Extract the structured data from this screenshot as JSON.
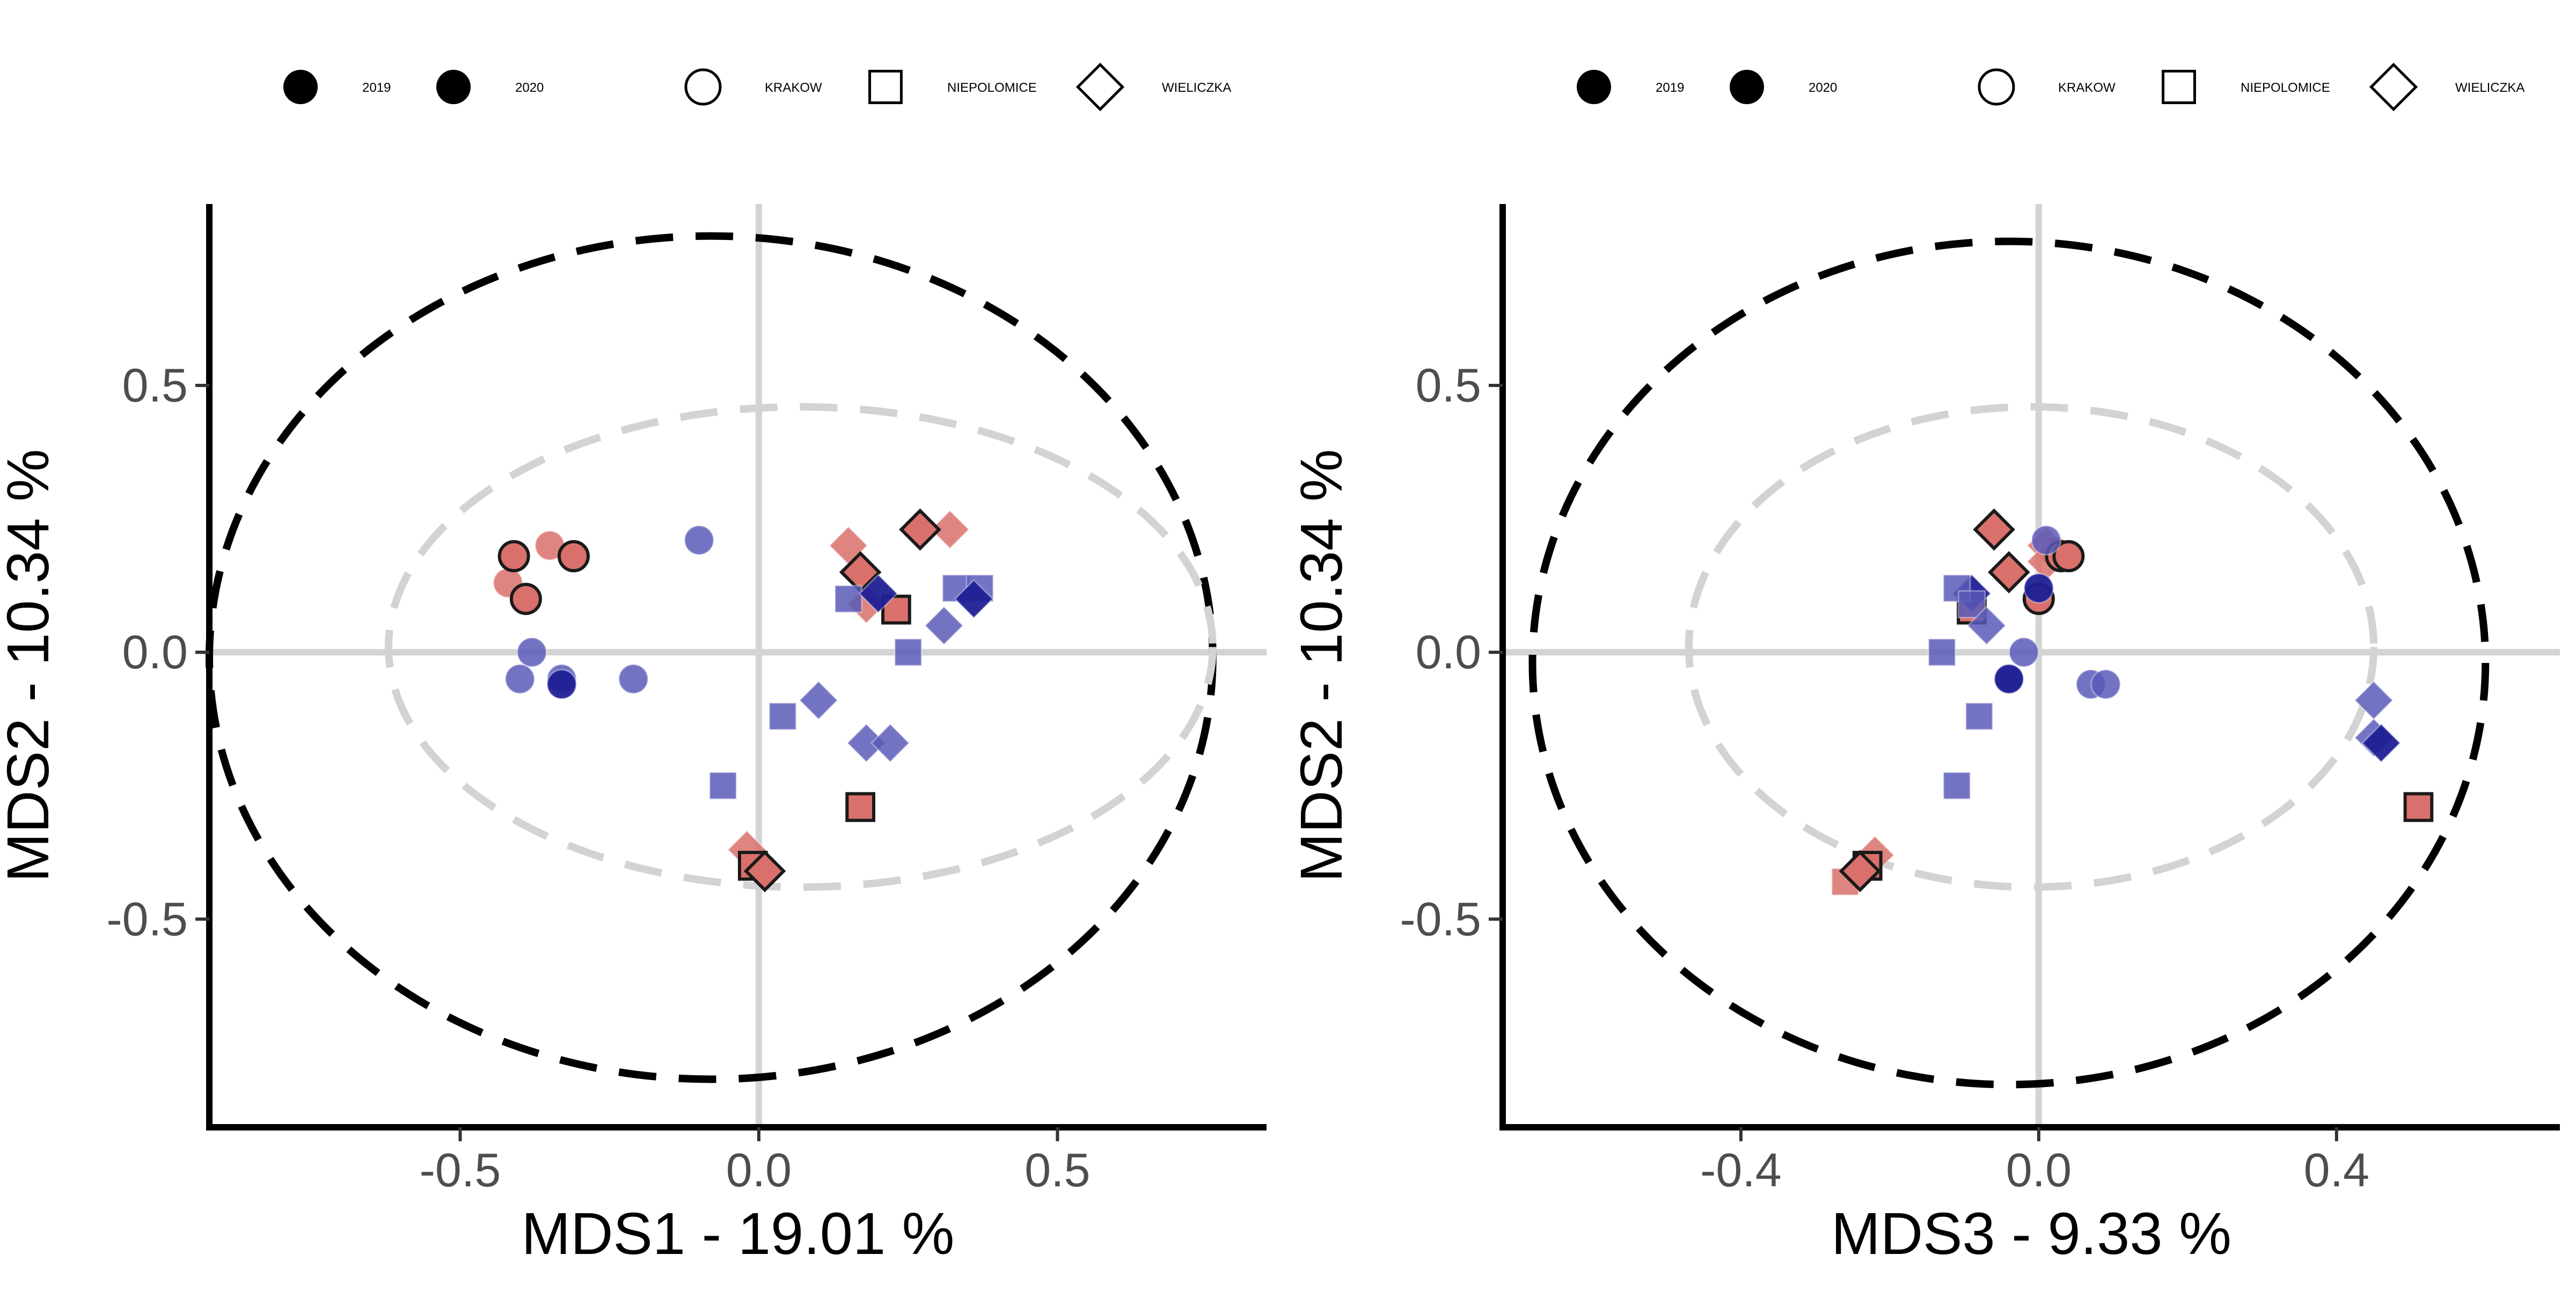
{
  "legend": {
    "year_entries": [
      {
        "label": "2019",
        "symbol": "circle-filled"
      },
      {
        "label": "2020",
        "symbol": "circle-filled"
      }
    ],
    "site_entries": [
      {
        "label": "KRAKOW",
        "symbol": "circle-open"
      },
      {
        "label": "NIEPOLOMICE",
        "symbol": "square-open"
      },
      {
        "label": "WIELICZKA",
        "symbol": "diamond-open"
      }
    ]
  },
  "colors": {
    "2019": "#d9706b",
    "2020": "#5a5ab8",
    "2020_dark": "#1f1f96",
    "ellipse_outer": "#000000",
    "ellipse_inner": "#d3d3d3",
    "zero_line": "#d3d3d3"
  },
  "chart_data": [
    {
      "type": "scatter",
      "xlabel": "MDS1 - 19.01 %",
      "ylabel": "MDS2 - 10.34 %",
      "xlim": [
        -0.92,
        0.85
      ],
      "ylim": [
        -0.89,
        0.84
      ],
      "xticks": [
        -0.5,
        0.0,
        0.5
      ],
      "xtick_labels": [
        "-0.5",
        "0.0",
        "0.5"
      ],
      "yticks": [
        -0.5,
        0.0,
        0.5
      ],
      "ytick_labels": [
        "-0.5",
        "0.0",
        "0.5"
      ],
      "ellipses": [
        {
          "style": "outer-dashed-black",
          "cx": -0.08,
          "cy": -0.01,
          "rx": 0.84,
          "ry": 0.79
        },
        {
          "style": "inner-dashed-grey",
          "cx": 0.07,
          "cy": 0.01,
          "rx": 0.69,
          "ry": 0.45
        }
      ],
      "series": [
        {
          "name": "2019",
          "points": [
            {
              "x": -0.42,
              "y": 0.13,
              "shape": "circle",
              "outline": false
            },
            {
              "x": -0.35,
              "y": 0.2,
              "shape": "circle",
              "outline": false
            },
            {
              "x": -0.41,
              "y": 0.18,
              "shape": "circle",
              "outline": true
            },
            {
              "x": -0.39,
              "y": 0.1,
              "shape": "circle",
              "outline": true
            },
            {
              "x": -0.31,
              "y": 0.18,
              "shape": "circle",
              "outline": true
            },
            {
              "x": 0.15,
              "y": 0.2,
              "shape": "diamond",
              "outline": false
            },
            {
              "x": 0.18,
              "y": 0.09,
              "shape": "diamond",
              "outline": false
            },
            {
              "x": 0.32,
              "y": 0.23,
              "shape": "diamond",
              "outline": false
            },
            {
              "x": 0.17,
              "y": 0.15,
              "shape": "diamond",
              "outline": true
            },
            {
              "x": 0.27,
              "y": 0.23,
              "shape": "diamond",
              "outline": true
            },
            {
              "x": 0.23,
              "y": 0.08,
              "shape": "square",
              "outline": true
            },
            {
              "x": 0.17,
              "y": -0.29,
              "shape": "square",
              "outline": true
            },
            {
              "x": -0.02,
              "y": -0.37,
              "shape": "diamond",
              "outline": false
            },
            {
              "x": -0.01,
              "y": -0.4,
              "shape": "square",
              "outline": true
            },
            {
              "x": 0.01,
              "y": -0.41,
              "shape": "diamond",
              "outline": true
            }
          ]
        },
        {
          "name": "2020",
          "points": [
            {
              "x": -0.1,
              "y": 0.21,
              "shape": "circle",
              "outline": false
            },
            {
              "x": -0.38,
              "y": 0.0,
              "shape": "circle",
              "outline": false
            },
            {
              "x": -0.4,
              "y": -0.05,
              "shape": "circle",
              "outline": false
            },
            {
              "x": -0.33,
              "y": -0.05,
              "shape": "circle",
              "outline": false
            },
            {
              "x": -0.33,
              "y": -0.06,
              "shape": "circle",
              "outline": false,
              "dark": true
            },
            {
              "x": -0.21,
              "y": -0.05,
              "shape": "circle",
              "outline": false
            },
            {
              "x": 0.15,
              "y": 0.1,
              "shape": "square",
              "outline": false
            },
            {
              "x": 0.2,
              "y": 0.11,
              "shape": "diamond",
              "outline": false,
              "dark": true
            },
            {
              "x": 0.33,
              "y": 0.12,
              "shape": "square",
              "outline": false
            },
            {
              "x": 0.37,
              "y": 0.12,
              "shape": "square",
              "outline": false
            },
            {
              "x": 0.36,
              "y": 0.1,
              "shape": "diamond",
              "outline": false,
              "dark": true
            },
            {
              "x": 0.31,
              "y": 0.05,
              "shape": "diamond",
              "outline": false
            },
            {
              "x": 0.25,
              "y": 0.0,
              "shape": "square",
              "outline": false
            },
            {
              "x": 0.04,
              "y": -0.12,
              "shape": "square",
              "outline": false
            },
            {
              "x": 0.1,
              "y": -0.09,
              "shape": "diamond",
              "outline": false
            },
            {
              "x": 0.18,
              "y": -0.17,
              "shape": "diamond",
              "outline": false
            },
            {
              "x": 0.22,
              "y": -0.17,
              "shape": "diamond",
              "outline": false
            },
            {
              "x": -0.06,
              "y": -0.25,
              "shape": "square",
              "outline": false
            }
          ]
        }
      ]
    },
    {
      "type": "scatter",
      "xlabel": "MDS3 - 9.33 %",
      "ylabel": "MDS2 - 10.34 %",
      "xlim": [
        -0.72,
        0.7
      ],
      "ylim": [
        -0.89,
        0.84
      ],
      "xticks": [
        -0.4,
        0.0,
        0.4
      ],
      "xtick_labels": [
        "-0.4",
        "0.0",
        "0.4"
      ],
      "yticks": [
        -0.5,
        0.0,
        0.5
      ],
      "ytick_labels": [
        "-0.5",
        "0.0",
        "0.5"
      ],
      "ellipses": [
        {
          "style": "outer-dashed-black",
          "cx": -0.04,
          "cy": -0.02,
          "rx": 0.64,
          "ry": 0.79
        },
        {
          "style": "inner-dashed-grey",
          "cx": -0.01,
          "cy": 0.01,
          "rx": 0.46,
          "ry": 0.45
        }
      ],
      "series": [
        {
          "name": "2019",
          "points": [
            {
              "x": 0.01,
              "y": 0.2,
              "shape": "diamond",
              "outline": false
            },
            {
              "x": 0.02,
              "y": 0.19,
              "shape": "circle",
              "outline": false
            },
            {
              "x": 0.01,
              "y": 0.17,
              "shape": "diamond",
              "outline": false
            },
            {
              "x": 0.03,
              "y": 0.18,
              "shape": "circle",
              "outline": true
            },
            {
              "x": 0.04,
              "y": 0.18,
              "shape": "circle",
              "outline": true
            },
            {
              "x": 0.0,
              "y": 0.1,
              "shape": "circle",
              "outline": true
            },
            {
              "x": -0.06,
              "y": 0.23,
              "shape": "diamond",
              "outline": true
            },
            {
              "x": -0.04,
              "y": 0.15,
              "shape": "diamond",
              "outline": true
            },
            {
              "x": -0.09,
              "y": 0.08,
              "shape": "square",
              "outline": true
            },
            {
              "x": 0.51,
              "y": -0.29,
              "shape": "square",
              "outline": true
            },
            {
              "x": -0.26,
              "y": -0.43,
              "shape": "square",
              "outline": false
            },
            {
              "x": -0.22,
              "y": -0.38,
              "shape": "diamond",
              "outline": false
            },
            {
              "x": -0.23,
              "y": -0.4,
              "shape": "square",
              "outline": true
            },
            {
              "x": -0.24,
              "y": -0.41,
              "shape": "diamond",
              "outline": true
            }
          ]
        },
        {
          "name": "2020",
          "points": [
            {
              "x": 0.01,
              "y": 0.21,
              "shape": "circle",
              "outline": false
            },
            {
              "x": -0.09,
              "y": 0.11,
              "shape": "diamond",
              "outline": false,
              "dark": true
            },
            {
              "x": -0.11,
              "y": 0.12,
              "shape": "square",
              "outline": false
            },
            {
              "x": -0.09,
              "y": 0.09,
              "shape": "square",
              "outline": false
            },
            {
              "x": -0.07,
              "y": 0.05,
              "shape": "diamond",
              "outline": false
            },
            {
              "x": 0.0,
              "y": 0.12,
              "shape": "circle",
              "outline": false,
              "dark": true
            },
            {
              "x": -0.13,
              "y": 0.0,
              "shape": "square",
              "outline": false
            },
            {
              "x": -0.02,
              "y": 0.0,
              "shape": "circle",
              "outline": false
            },
            {
              "x": -0.04,
              "y": -0.05,
              "shape": "circle",
              "outline": false
            },
            {
              "x": -0.04,
              "y": -0.05,
              "shape": "circle",
              "outline": false,
              "dark": true
            },
            {
              "x": 0.07,
              "y": -0.06,
              "shape": "circle",
              "outline": false
            },
            {
              "x": 0.09,
              "y": -0.06,
              "shape": "circle",
              "outline": false
            },
            {
              "x": -0.08,
              "y": -0.12,
              "shape": "square",
              "outline": false
            },
            {
              "x": -0.11,
              "y": -0.25,
              "shape": "square",
              "outline": false
            },
            {
              "x": 0.45,
              "y": -0.09,
              "shape": "diamond",
              "outline": false
            },
            {
              "x": 0.45,
              "y": -0.16,
              "shape": "diamond",
              "outline": false
            },
            {
              "x": 0.46,
              "y": -0.17,
              "shape": "diamond",
              "outline": false,
              "dark": true
            }
          ]
        }
      ]
    }
  ]
}
